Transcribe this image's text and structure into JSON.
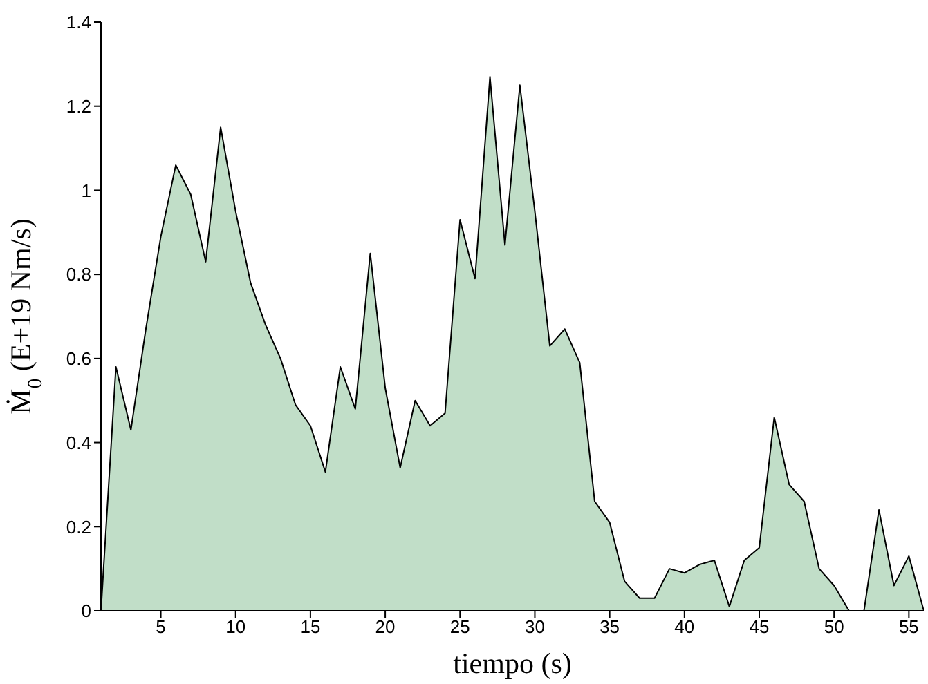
{
  "chart_data": {
    "type": "area",
    "xlabel": "tiempo (s)",
    "ylabel": "Ṁ$_{0}$ (E+19 Nm/s)",
    "x": [
      1,
      2,
      3,
      4,
      5,
      6,
      7,
      8,
      9,
      10,
      11,
      12,
      13,
      14,
      15,
      16,
      17,
      18,
      19,
      20,
      21,
      22,
      23,
      24,
      25,
      26,
      27,
      28,
      29,
      30,
      31,
      32,
      33,
      34,
      35,
      36,
      37,
      38,
      39,
      40,
      41,
      42,
      43,
      44,
      45,
      46,
      47,
      48,
      49,
      50,
      51,
      52,
      53,
      54,
      55,
      56
    ],
    "series": [
      {
        "color": "#c1dec8",
        "values": [
          0,
          0.58,
          0.43,
          0.67,
          0.89,
          1.06,
          0.99,
          0.83,
          1.15,
          0.95,
          0.78,
          0.68,
          0.6,
          0.49,
          0.44,
          0.33,
          0.58,
          0.48,
          0.85,
          0.53,
          0.34,
          0.5,
          0.44,
          0.47,
          0.93,
          0.79,
          1.27,
          0.87,
          1.25,
          0.95,
          0.63,
          0.67,
          0.59,
          0.26,
          0.21,
          0.07,
          0.03,
          0.03,
          0.1,
          0.09,
          0.11,
          0.12,
          0.01,
          0.12,
          0.15,
          0.46,
          0.3,
          0.26,
          0.1,
          0.06,
          0,
          0,
          0.24,
          0.06,
          0.13,
          0
        ]
      }
    ],
    "xlim": [
      1,
      56
    ],
    "xticks": [
      5,
      10,
      15,
      20,
      25,
      30,
      35,
      40,
      45,
      50,
      55
    ],
    "ylim": [
      0,
      1.4
    ],
    "yticks": [
      0,
      0.2,
      0.4,
      0.6,
      0.8,
      1,
      1.2,
      1.4
    ],
    "grid": false,
    "legend": false
  }
}
